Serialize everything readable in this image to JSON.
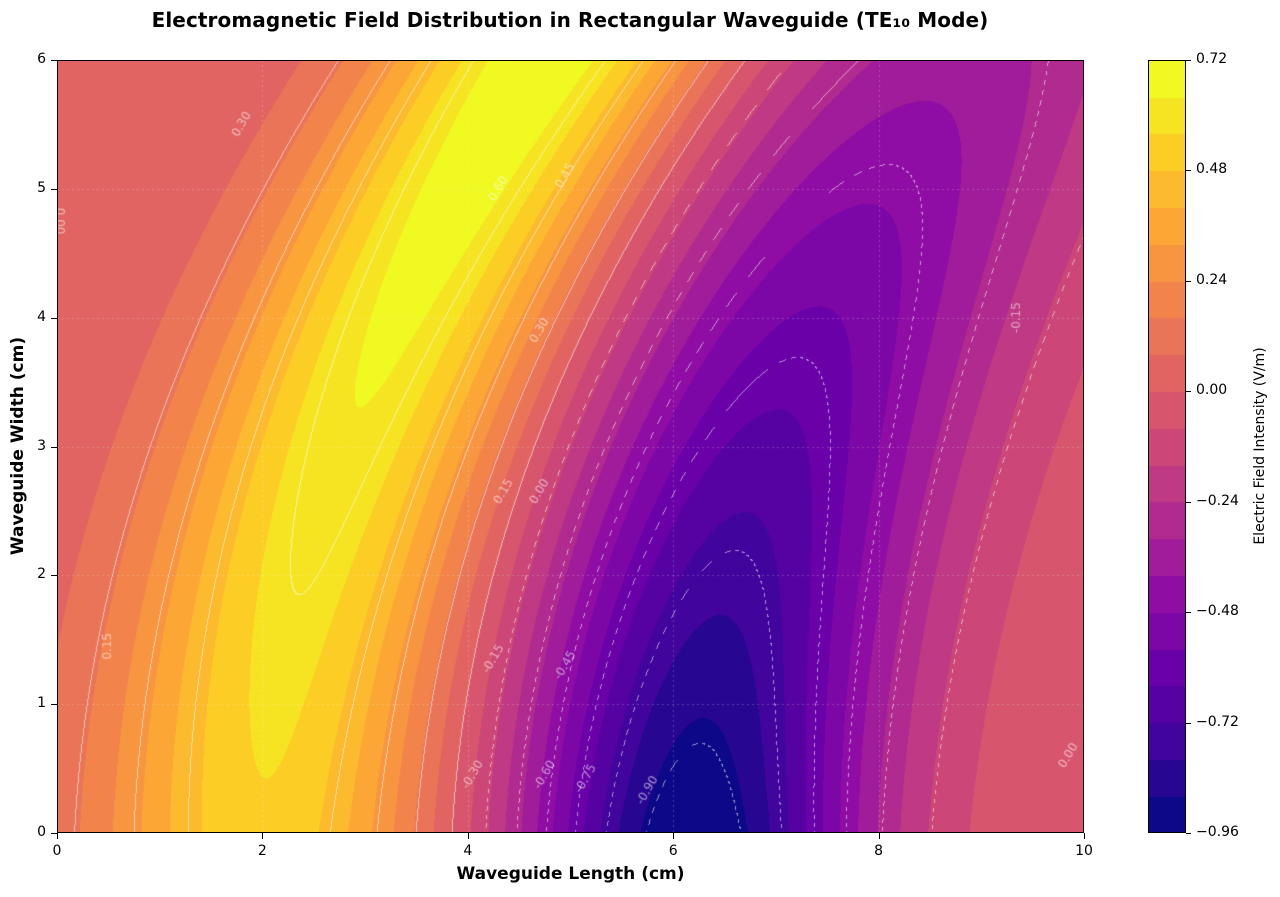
{
  "chart": {
    "title": "Electromagnetic Field Distribution in Rectangular Waveguide (TE₁₀ Mode)",
    "xlabel": "Waveguide Length (cm)",
    "ylabel": "Waveguide Width (cm)",
    "colorbar_label": "Electric Field Intensity (V/m)",
    "x_ticks": [
      "0",
      "2",
      "4",
      "6",
      "8",
      "10"
    ],
    "y_ticks": [
      "0",
      "1",
      "2",
      "3",
      "4",
      "5",
      "6"
    ],
    "colorbar_ticks": [
      "0.72",
      "0.48",
      "0.24",
      "0.00",
      "−0.24",
      "−0.48",
      "−0.72",
      "−0.96"
    ]
  },
  "chart_data": {
    "type": "heatmap",
    "subtype": "filled-contour",
    "title": "Electromagnetic Field Distribution in Rectangular Waveguide (TE₁₀ Mode)",
    "xlabel": "Waveguide Length (cm)",
    "ylabel": "Waveguide Width (cm)",
    "colorbar_label": "Electric Field Intensity (V/m)",
    "colormap": "plasma",
    "xlim": [
      0,
      10
    ],
    "ylim": [
      0,
      6
    ],
    "clim": [
      -0.96,
      0.72
    ],
    "grid": true,
    "fill_levels": [
      -0.96,
      -0.88,
      -0.8,
      -0.72,
      -0.64,
      -0.56,
      -0.48,
      -0.4,
      -0.32,
      -0.24,
      -0.16,
      -0.08,
      0.0,
      0.08,
      0.16,
      0.24,
      0.32,
      0.4,
      0.48,
      0.56,
      0.64,
      0.72
    ],
    "colorbar_ticks": [
      0.72,
      0.48,
      0.24,
      0.0,
      -0.24,
      -0.48,
      -0.72,
      -0.96
    ],
    "contour_line_levels": [
      -0.9,
      -0.75,
      -0.6,
      -0.45,
      -0.3,
      -0.15,
      0.0,
      0.15,
      0.3,
      0.45,
      0.6
    ],
    "contour_labels": [
      {
        "text": "0.30",
        "x": 1.8,
        "y": 5.5
      },
      {
        "text": "0.00",
        "x": 0.02,
        "y": 4.75
      },
      {
        "text": "0.60",
        "x": 4.3,
        "y": 5.0
      },
      {
        "text": "0.45",
        "x": 4.95,
        "y": 5.1
      },
      {
        "text": "0.30",
        "x": 4.7,
        "y": 3.9
      },
      {
        "text": "0.15",
        "x": 4.35,
        "y": 2.65
      },
      {
        "text": "0.00",
        "x": 4.7,
        "y": 2.65
      },
      {
        "text": "-0.15",
        "x": 4.25,
        "y": 1.35
      },
      {
        "text": "-0.45",
        "x": 4.95,
        "y": 1.3
      },
      {
        "text": "0.15",
        "x": 0.5,
        "y": 1.45
      },
      {
        "text": "-0.30",
        "x": 4.05,
        "y": 0.45
      },
      {
        "text": "-0.60",
        "x": 4.75,
        "y": 0.45
      },
      {
        "text": "-0.75",
        "x": 5.15,
        "y": 0.42
      },
      {
        "text": "-0.90",
        "x": 5.75,
        "y": 0.33
      },
      {
        "text": "-0.15",
        "x": 9.35,
        "y": 4.0
      },
      {
        "text": "0.00",
        "x": 9.85,
        "y": 0.6
      }
    ],
    "features": {
      "positive_max": {
        "value": 0.72,
        "x": 3.6,
        "y": 5.0
      },
      "negative_min": {
        "value": -0.96,
        "x": 6.2,
        "y": 0.0
      }
    }
  },
  "plasma_stops": [
    "#0d0887",
    "#41049d",
    "#6a00a8",
    "#8f0da4",
    "#b12a90",
    "#cc4778",
    "#e16462",
    "#f2844b",
    "#fca636",
    "#fcce25",
    "#f0f921"
  ]
}
